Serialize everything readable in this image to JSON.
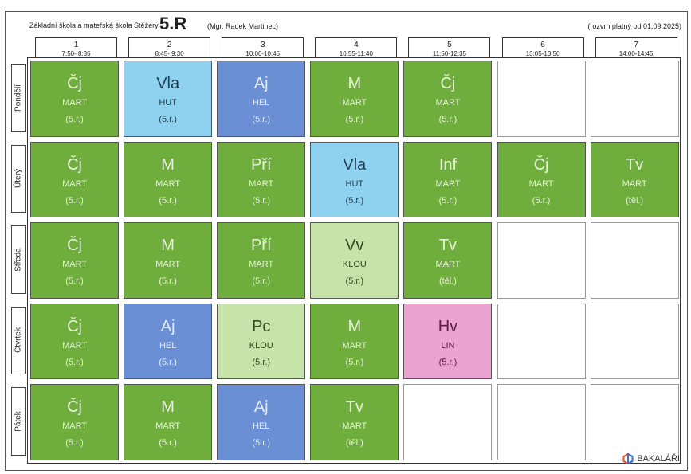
{
  "header": {
    "school": "Základní škola a mateřská škola Stěžery",
    "class_name": "5.R",
    "teacher": "(Mgr. Radek Martinec)",
    "validity": "(rozvrh platný od 01.09.2025)"
  },
  "periods": [
    {
      "num": "1",
      "time": "7:50- 8:35"
    },
    {
      "num": "2",
      "time": "8:45- 9:30"
    },
    {
      "num": "3",
      "time": "10:00-10:45"
    },
    {
      "num": "4",
      "time": "10:55-11:40"
    },
    {
      "num": "5",
      "time": "11:50-12:35"
    },
    {
      "num": "6",
      "time": "13:05-13:50"
    },
    {
      "num": "7",
      "time": "14:00-14:45"
    }
  ],
  "days": [
    "Pondělí",
    "Úterý",
    "Středa",
    "Čtvrtek",
    "Pátek"
  ],
  "lessons": [
    [
      {
        "subject": "Čj",
        "teacher": "MART",
        "room": "(5.r.)",
        "color": "green"
      },
      {
        "subject": "Vla",
        "teacher": "HUT",
        "room": "(5.r.)",
        "color": "sky"
      },
      {
        "subject": "Aj",
        "teacher": "HEL",
        "room": "(5.r.)",
        "color": "blue"
      },
      {
        "subject": "M",
        "teacher": "MART",
        "room": "(5.r.)",
        "color": "green"
      },
      {
        "subject": "Čj",
        "teacher": "MART",
        "room": "(5.r.)",
        "color": "green"
      },
      null,
      null
    ],
    [
      {
        "subject": "Čj",
        "teacher": "MART",
        "room": "(5.r.)",
        "color": "green"
      },
      {
        "subject": "M",
        "teacher": "MART",
        "room": "(5.r.)",
        "color": "green"
      },
      {
        "subject": "Pří",
        "teacher": "MART",
        "room": "(5.r.)",
        "color": "green"
      },
      {
        "subject": "Vla",
        "teacher": "HUT",
        "room": "(5.r.)",
        "color": "sky"
      },
      {
        "subject": "Inf",
        "teacher": "MART",
        "room": "(5.r.)",
        "color": "green"
      },
      {
        "subject": "Čj",
        "teacher": "MART",
        "room": "(5.r.)",
        "color": "green"
      },
      {
        "subject": "Tv",
        "teacher": "MART",
        "room": "(těl.)",
        "color": "green"
      }
    ],
    [
      {
        "subject": "Čj",
        "teacher": "MART",
        "room": "(5.r.)",
        "color": "green"
      },
      {
        "subject": "M",
        "teacher": "MART",
        "room": "(5.r.)",
        "color": "green"
      },
      {
        "subject": "Pří",
        "teacher": "MART",
        "room": "(5.r.)",
        "color": "green"
      },
      {
        "subject": "Vv",
        "teacher": "KLOU",
        "room": "(5.r.)",
        "color": "light"
      },
      {
        "subject": "Tv",
        "teacher": "MART",
        "room": "(těl.)",
        "color": "green"
      },
      null,
      null
    ],
    [
      {
        "subject": "Čj",
        "teacher": "MART",
        "room": "(5.r.)",
        "color": "green"
      },
      {
        "subject": "Aj",
        "teacher": "HEL",
        "room": "(5.r.)",
        "color": "blue"
      },
      {
        "subject": "Pc",
        "teacher": "KLOU",
        "room": "(5.r.)",
        "color": "light"
      },
      {
        "subject": "M",
        "teacher": "MART",
        "room": "(5.r.)",
        "color": "green"
      },
      {
        "subject": "Hv",
        "teacher": "LIN",
        "room": "(5.r.)",
        "color": "pink"
      },
      null,
      null
    ],
    [
      {
        "subject": "Čj",
        "teacher": "MART",
        "room": "(5.r.)",
        "color": "green"
      },
      {
        "subject": "M",
        "teacher": "MART",
        "room": "(5.r.)",
        "color": "green"
      },
      {
        "subject": "Aj",
        "teacher": "HEL",
        "room": "(5.r.)",
        "color": "blue"
      },
      {
        "subject": "Tv",
        "teacher": "MART",
        "room": "(těl.)",
        "color": "green"
      },
      null,
      null,
      null
    ]
  ],
  "colors": {
    "green": "#6fae3c",
    "light": "#c6e3a9",
    "sky": "#8fd2f0",
    "blue": "#6a8fd4",
    "pink": "#eba4d2"
  },
  "footer": {
    "logo_text": "BAKALÁŘI",
    "logo_icon": "bakalari-hexagon-icon"
  }
}
